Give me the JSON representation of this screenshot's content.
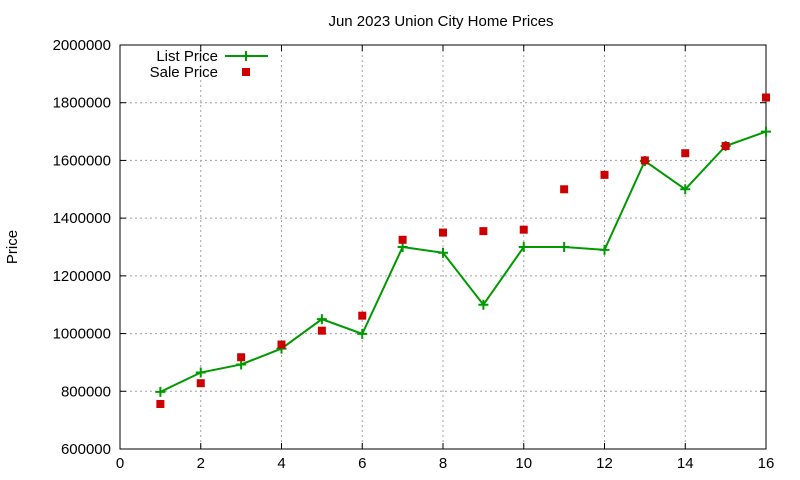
{
  "chart_data": {
    "type": "line",
    "title": "Jun 2023 Union City Home Prices",
    "xlabel": "",
    "ylabel": "Price",
    "xlim": [
      0,
      16
    ],
    "ylim": [
      600000,
      2000000
    ],
    "x_ticks": [
      0,
      2,
      4,
      6,
      8,
      10,
      12,
      14,
      16
    ],
    "y_ticks": [
      600000,
      800000,
      1000000,
      1200000,
      1400000,
      1600000,
      1800000,
      2000000
    ],
    "grid": true,
    "legend_position": "top-left",
    "series": [
      {
        "name": "List Price",
        "style": "line-with-plus",
        "color": "#009900",
        "x": [
          1,
          2,
          3,
          4,
          5,
          6,
          7,
          8,
          9,
          10,
          11,
          12,
          13,
          14,
          15,
          16
        ],
        "y": [
          798000,
          865000,
          893000,
          948000,
          1050000,
          999000,
          1300000,
          1280000,
          1100000,
          1300000,
          1300000,
          1290000,
          1598000,
          1500000,
          1650000,
          1700000
        ]
      },
      {
        "name": "Sale Price",
        "style": "square-marker",
        "color": "#cc0000",
        "x": [
          1,
          2,
          3,
          4,
          5,
          6,
          7,
          8,
          9,
          10,
          11,
          12,
          13,
          14,
          15,
          16
        ],
        "y": [
          756000,
          828000,
          918000,
          962000,
          1010000,
          1062000,
          1325000,
          1350000,
          1355000,
          1360000,
          1500000,
          1550000,
          1600000,
          1625000,
          1650000,
          1818000
        ]
      }
    ]
  }
}
